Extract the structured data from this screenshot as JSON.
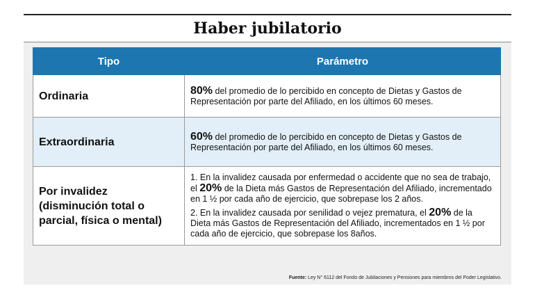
{
  "title": "Haber jubilatorio",
  "headers": {
    "tipo": "Tipo",
    "parametro": "Parámetro"
  },
  "rows": [
    {
      "tipo": "Ordinaria",
      "pct": "80%",
      "text": " del promedio de lo percibido en concepto de Dietas y Gastos de Representación por parte del Afiliado, en los últimos 60 meses."
    },
    {
      "tipo": "Extraordinaria",
      "pct": "60%",
      "text": " del promedio de lo percibido en concepto de Dietas y Gastos de Representación por parte del Afiliado, en los últimos 60 meses."
    },
    {
      "tipo": "Por invalidez (disminución total o parcial, física o mental)",
      "items": [
        {
          "before": "1. En la invalidez causada por enfermedad o accidente que no sea de trabajo, el ",
          "pct": "20%",
          "after": " de la Dieta más Gastos de Representación del Afiliado, incrementado en 1 ½ por cada año de ejercicio, que sobrepase los 2 años."
        },
        {
          "before": "2. En la invalidez causada por senilidad o vejez prematura, el ",
          "pct": "20%",
          "after": " de la Dieta más Gastos de Representación del Afiliado, incrementados en 1 ½ por cada año de ejercicio, que sobrepase los 8años."
        }
      ]
    }
  ],
  "source": {
    "label": "Fuente:",
    "text": " Ley N° 6112 del Fondo de Jubilaciones y Pensiones para miembros del Poder Legislativo."
  }
}
